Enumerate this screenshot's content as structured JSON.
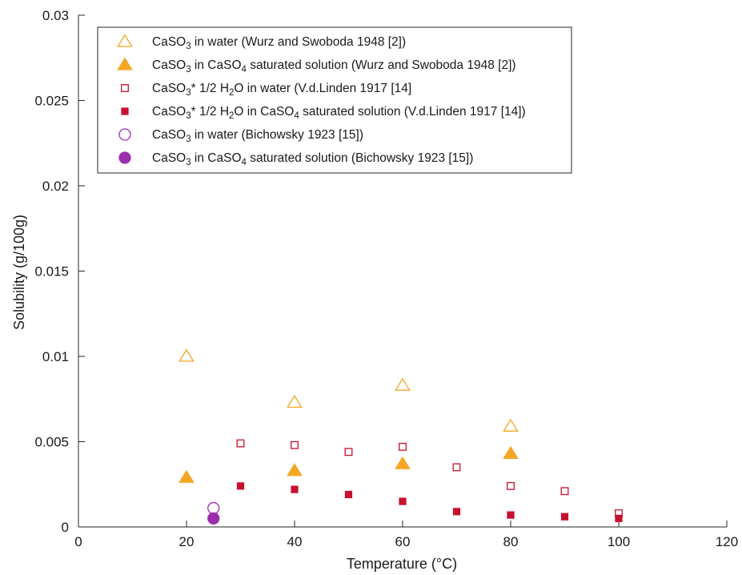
{
  "chart_data": {
    "type": "scatter",
    "title": "",
    "xlabel": "Temperature (°C)",
    "ylabel": "Solubility (g/100g)",
    "xlim": [
      0,
      120
    ],
    "ylim": [
      0,
      0.03
    ],
    "xticks": [
      "0",
      "20",
      "40",
      "60",
      "80",
      "100",
      "120"
    ],
    "yticks": [
      "0",
      "0.005",
      "0.01",
      "0.015",
      "0.02",
      "0.025",
      "0.03"
    ],
    "xtick_values": [
      0,
      20,
      40,
      60,
      80,
      100,
      120
    ],
    "ytick_values": [
      0,
      0.005,
      0.01,
      0.015,
      0.02,
      0.025,
      0.03
    ],
    "grid": false,
    "legend_position": "top-left",
    "series": [
      {
        "label_parts": [
          [
            "CaSO",
            ""
          ],
          [
            "3",
            "sub"
          ],
          [
            " in water (Wurz and Swoboda 1948 [2])",
            ""
          ]
        ],
        "marker": "triangle",
        "filled": false,
        "color": "#F5A623",
        "x": [
          20,
          40,
          60,
          80
        ],
        "y": [
          0.01,
          0.0073,
          0.0083,
          0.0059
        ]
      },
      {
        "label_parts": [
          [
            "CaSO",
            ""
          ],
          [
            "3",
            "sub"
          ],
          [
            " in CaSO",
            ""
          ],
          [
            "4",
            "sub"
          ],
          [
            " saturated solution (Wurz and Swoboda 1948 [2])",
            ""
          ]
        ],
        "marker": "triangle",
        "filled": true,
        "color": "#F5A623",
        "x": [
          20,
          40,
          60,
          80
        ],
        "y": [
          0.0029,
          0.0033,
          0.0037,
          0.0043
        ]
      },
      {
        "label_parts": [
          [
            "CaSO",
            ""
          ],
          [
            "3",
            "sub"
          ],
          [
            "* 1/2 H",
            ""
          ],
          [
            "2",
            "sub"
          ],
          [
            "O in water (V.d.Linden 1917 [14]",
            ""
          ]
        ],
        "marker": "square",
        "filled": false,
        "color": "#C8102E",
        "x": [
          30,
          40,
          50,
          60,
          70,
          80,
          90,
          100
        ],
        "y": [
          0.0049,
          0.0048,
          0.0044,
          0.0047,
          0.0035,
          0.0024,
          0.0021,
          0.0008
        ]
      },
      {
        "label_parts": [
          [
            "CaSO",
            ""
          ],
          [
            "3",
            "sub"
          ],
          [
            "* 1/2 H",
            ""
          ],
          [
            "2",
            "sub"
          ],
          [
            "O in CaSO",
            ""
          ],
          [
            "4",
            "sub"
          ],
          [
            " saturated solution (V.d.Linden 1917 [14])",
            ""
          ]
        ],
        "marker": "square",
        "filled": true,
        "color": "#C8102E",
        "x": [
          30,
          40,
          50,
          60,
          70,
          80,
          90,
          100
        ],
        "y": [
          0.0024,
          0.0022,
          0.0019,
          0.0015,
          0.0009,
          0.0007,
          0.0006,
          0.0005
        ]
      },
      {
        "label_parts": [
          [
            "CaSO",
            ""
          ],
          [
            "3",
            "sub"
          ],
          [
            " in water (Bichowsky 1923 [15])",
            ""
          ]
        ],
        "marker": "circle",
        "filled": false,
        "color": "#9B2FAE",
        "x": [
          25
        ],
        "y": [
          0.0011
        ]
      },
      {
        "label_parts": [
          [
            "CaSO",
            ""
          ],
          [
            "3",
            "sub"
          ],
          [
            " in CaSO",
            ""
          ],
          [
            "4",
            "sub"
          ],
          [
            " saturated solution (Bichowsky 1923 [15])",
            ""
          ]
        ],
        "marker": "circle",
        "filled": true,
        "color": "#9B2FAE",
        "x": [
          25
        ],
        "y": [
          0.0005
        ]
      }
    ]
  }
}
